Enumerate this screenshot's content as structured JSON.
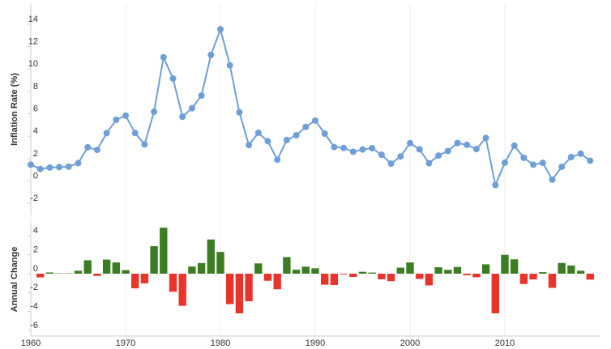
{
  "chart_data": [
    {
      "type": "line",
      "y_label": "Inflation Rate (%)",
      "color": "#6f9fd8",
      "x": [
        1960,
        1961,
        1962,
        1963,
        1964,
        1965,
        1966,
        1967,
        1968,
        1969,
        1970,
        1971,
        1972,
        1973,
        1974,
        1975,
        1976,
        1977,
        1978,
        1979,
        1980,
        1981,
        1982,
        1983,
        1984,
        1985,
        1986,
        1987,
        1988,
        1989,
        1990,
        1991,
        1992,
        1993,
        1994,
        1995,
        1996,
        1997,
        1998,
        1999,
        2000,
        2001,
        2002,
        2003,
        2004,
        2005,
        2006,
        2007,
        2008,
        2009,
        2010,
        2011,
        2012,
        2013,
        2014,
        2015,
        2016,
        2017,
        2018,
        2019
      ],
      "values": [
        1.46,
        1.07,
        1.2,
        1.24,
        1.28,
        1.59,
        3.01,
        2.78,
        4.27,
        5.46,
        5.84,
        4.29,
        3.27,
        6.18,
        11.05,
        9.14,
        5.74,
        6.5,
        7.63,
        11.25,
        13.55,
        10.33,
        6.13,
        3.21,
        4.3,
        3.55,
        1.9,
        3.66,
        4.08,
        4.83,
        5.4,
        4.23,
        3.03,
        2.95,
        2.61,
        2.81,
        2.93,
        2.34,
        1.55,
        2.19,
        3.38,
        2.83,
        1.59,
        2.27,
        2.68,
        3.39,
        3.23,
        2.85,
        3.84,
        -0.36,
        1.64,
        3.16,
        2.07,
        1.46,
        1.62,
        0.12,
        1.26,
        2.13,
        2.44,
        1.81
      ],
      "xlim": [
        1960,
        2020
      ],
      "ylim": [
        -3,
        15.8
      ],
      "yticks": [
        -2,
        0,
        2,
        4,
        6,
        8,
        10,
        12,
        14
      ]
    },
    {
      "type": "bar",
      "y_label": "Annual Change",
      "positive_color": "#3b7d23",
      "negative_color": "#e8352b",
      "x": [
        1960,
        1961,
        1962,
        1963,
        1964,
        1965,
        1966,
        1967,
        1968,
        1969,
        1970,
        1971,
        1972,
        1973,
        1974,
        1975,
        1976,
        1977,
        1978,
        1979,
        1980,
        1981,
        1982,
        1983,
        1984,
        1985,
        1986,
        1987,
        1988,
        1989,
        1990,
        1991,
        1992,
        1993,
        1994,
        1995,
        1996,
        1997,
        1998,
        1999,
        2000,
        2001,
        2002,
        2003,
        2004,
        2005,
        2006,
        2007,
        2008,
        2009,
        2010,
        2011,
        2012,
        2013,
        2014,
        2015,
        2016,
        2017,
        2018,
        2019
      ],
      "values": [
        null,
        -0.39,
        0.13,
        0.04,
        0.04,
        0.31,
        1.42,
        -0.23,
        1.49,
        1.19,
        0.38,
        -1.55,
        -1.02,
        2.91,
        4.87,
        -1.91,
        -3.4,
        0.76,
        1.13,
        3.62,
        2.3,
        -3.22,
        -4.2,
        -2.92,
        1.09,
        -0.75,
        -1.65,
        1.76,
        0.42,
        0.75,
        0.57,
        -1.17,
        -1.2,
        -0.08,
        -0.34,
        0.2,
        0.12,
        -0.59,
        -0.79,
        0.64,
        1.19,
        -0.55,
        -1.24,
        0.68,
        0.41,
        0.71,
        -0.16,
        -0.38,
        0.99,
        -4.2,
        2.0,
        1.52,
        -1.09,
        -0.61,
        0.16,
        -1.5,
        1.14,
        0.87,
        0.31,
        -0.63
      ],
      "xlim": [
        1960,
        2020
      ],
      "ylim": [
        -6.6,
        5.4
      ],
      "yticks": [
        -6,
        -4,
        -2,
        0,
        2,
        4
      ],
      "xticks": [
        1960,
        1970,
        1980,
        1990,
        2000,
        2010
      ]
    }
  ]
}
